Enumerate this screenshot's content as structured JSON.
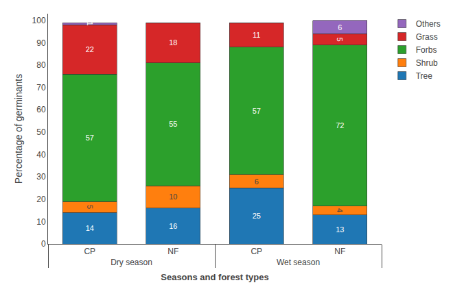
{
  "chart_data": {
    "type": "bar",
    "stacked": true,
    "categories": [
      "CP",
      "NF",
      "CP",
      "NF"
    ],
    "groups": [
      "Dry season",
      "Dry season",
      "Wet season",
      "Wet season"
    ],
    "series": [
      {
        "name": "Tree",
        "values": [
          14,
          16,
          25,
          13
        ]
      },
      {
        "name": "Shrub",
        "values": [
          5,
          10,
          6,
          4
        ]
      },
      {
        "name": "Forbs",
        "values": [
          57,
          55,
          57,
          72
        ]
      },
      {
        "name": "Grass",
        "values": [
          22,
          18,
          11,
          5
        ]
      },
      {
        "name": "Others",
        "values": [
          1,
          0,
          0,
          6
        ]
      }
    ],
    "ylabel": "Percentage of germinants",
    "xlabel": "Seasons and forest types",
    "ylim": [
      0,
      103
    ],
    "yticks": [
      0,
      10,
      20,
      30,
      40,
      50,
      60,
      70,
      80,
      90,
      100
    ],
    "data_labels": true,
    "grid": false,
    "legend": "right"
  }
}
